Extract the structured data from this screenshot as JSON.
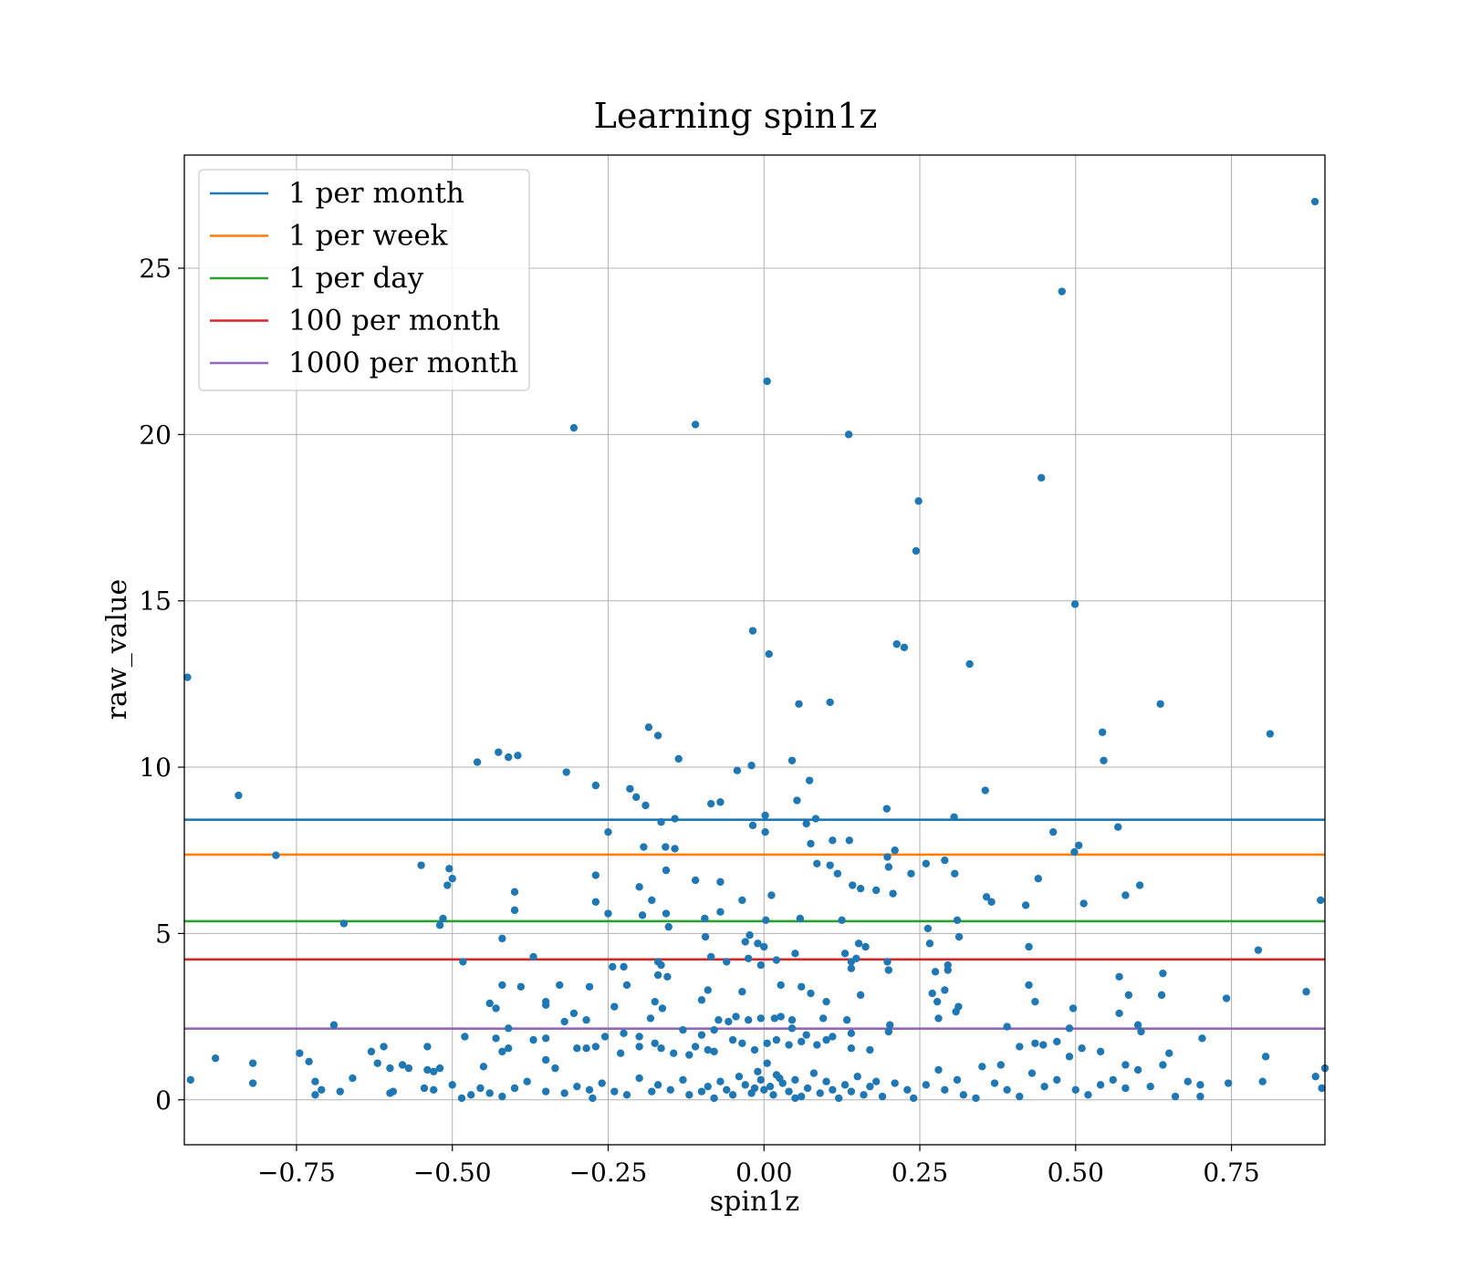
{
  "chart_data": {
    "type": "scatter",
    "title": "Learning spin1z",
    "xlabel": "spin1z",
    "ylabel": "raw_value",
    "xlim": [
      -0.93,
      0.9
    ],
    "ylim": [
      -1.35,
      28.4
    ],
    "xticks": [
      -0.75,
      -0.5,
      -0.25,
      0.0,
      0.25,
      0.5,
      0.75
    ],
    "xtick_labels": [
      "−0.75",
      "−0.50",
      "−0.25",
      "0.00",
      "0.25",
      "0.50",
      "0.75"
    ],
    "yticks": [
      0,
      5,
      10,
      15,
      20,
      25
    ],
    "ytick_labels": [
      "0",
      "5",
      "10",
      "15",
      "20",
      "25"
    ],
    "grid": true,
    "legend_position": "top-left",
    "point_color": "#1f77b4",
    "hlines": [
      {
        "name": "1 per month",
        "y": 8.42,
        "color": "#1f77b4"
      },
      {
        "name": "1 per week",
        "y": 7.37,
        "color": "#ff7f0e"
      },
      {
        "name": "1 per day",
        "y": 5.37,
        "color": "#2ca02c"
      },
      {
        "name": "100 per month",
        "y": 4.22,
        "color": "#d62728"
      },
      {
        "name": "1000 per month",
        "y": 2.14,
        "color": "#9467bd"
      }
    ],
    "points": [
      [
        0.884,
        27.0
      ],
      [
        0.478,
        24.3
      ],
      [
        0.005,
        21.6
      ],
      [
        -0.305,
        20.2
      ],
      [
        -0.11,
        20.3
      ],
      [
        0.136,
        20.0
      ],
      [
        0.445,
        18.7
      ],
      [
        0.248,
        18.0
      ],
      [
        0.244,
        16.5
      ],
      [
        0.499,
        14.9
      ],
      [
        -0.018,
        14.1
      ],
      [
        0.008,
        13.4
      ],
      [
        0.213,
        13.7
      ],
      [
        0.225,
        13.6
      ],
      [
        0.33,
        13.1
      ],
      [
        -0.925,
        12.7
      ],
      [
        0.056,
        11.9
      ],
      [
        0.106,
        11.95
      ],
      [
        0.636,
        11.9
      ],
      [
        0.812,
        11.0
      ],
      [
        0.543,
        11.05
      ],
      [
        -0.185,
        11.2
      ],
      [
        -0.17,
        10.95
      ],
      [
        -0.137,
        10.25
      ],
      [
        -0.46,
        10.15
      ],
      [
        -0.426,
        10.45
      ],
      [
        -0.41,
        10.3
      ],
      [
        -0.395,
        10.35
      ],
      [
        0.545,
        10.2
      ],
      [
        0.045,
        10.2
      ],
      [
        -0.043,
        9.9
      ],
      [
        -0.02,
        10.05
      ],
      [
        -0.317,
        9.85
      ],
      [
        -0.27,
        9.45
      ],
      [
        -0.215,
        9.35
      ],
      [
        -0.205,
        9.1
      ],
      [
        -0.19,
        8.85
      ],
      [
        -0.085,
        8.9
      ],
      [
        -0.07,
        8.95
      ],
      [
        0.053,
        9.0
      ],
      [
        0.073,
        9.6
      ],
      [
        0.197,
        8.75
      ],
      [
        0.355,
        9.3
      ],
      [
        -0.843,
        9.15
      ],
      [
        0.305,
        8.5
      ],
      [
        0.083,
        8.45
      ],
      [
        0.068,
        8.3
      ],
      [
        -0.018,
        8.25
      ],
      [
        0.002,
        8.55
      ],
      [
        0.002,
        8.05
      ],
      [
        -0.143,
        8.45
      ],
      [
        -0.165,
        8.35
      ],
      [
        -0.25,
        8.05
      ],
      [
        0.464,
        8.05
      ],
      [
        0.568,
        8.2
      ],
      [
        0.505,
        7.65
      ],
      [
        0.498,
        7.45
      ],
      [
        0.11,
        7.8
      ],
      [
        0.137,
        7.8
      ],
      [
        0.075,
        7.7
      ],
      [
        -0.158,
        7.6
      ],
      [
        -0.143,
        7.55
      ],
      [
        -0.193,
        7.6
      ],
      [
        0.21,
        7.5
      ],
      [
        0.198,
        7.3
      ],
      [
        0.29,
        7.2
      ],
      [
        0.26,
        7.1
      ],
      [
        -0.783,
        7.35
      ],
      [
        -0.55,
        7.05
      ],
      [
        -0.505,
        6.95
      ],
      [
        -0.5,
        6.65
      ],
      [
        -0.508,
        6.45
      ],
      [
        0.085,
        7.1
      ],
      [
        0.106,
        7.05
      ],
      [
        0.118,
        6.8
      ],
      [
        0.236,
        6.8
      ],
      [
        0.306,
        6.8
      ],
      [
        0.2,
        7.0
      ],
      [
        -0.157,
        6.9
      ],
      [
        -0.27,
        6.75
      ],
      [
        -0.11,
        6.6
      ],
      [
        -0.07,
        6.55
      ],
      [
        0.142,
        6.45
      ],
      [
        0.155,
        6.35
      ],
      [
        0.18,
        6.3
      ],
      [
        0.207,
        6.2
      ],
      [
        -0.2,
        6.4
      ],
      [
        -0.18,
        6.0
      ],
      [
        -0.4,
        6.25
      ],
      [
        0.44,
        6.65
      ],
      [
        0.603,
        6.45
      ],
      [
        0.58,
        6.15
      ],
      [
        0.357,
        6.1
      ],
      [
        0.365,
        5.95
      ],
      [
        0.012,
        6.15
      ],
      [
        -0.035,
        6.0
      ],
      [
        0.42,
        5.85
      ],
      [
        0.513,
        5.9
      ],
      [
        -0.27,
        5.95
      ],
      [
        -0.4,
        5.7
      ],
      [
        -0.25,
        5.6
      ],
      [
        -0.157,
        5.6
      ],
      [
        -0.095,
        5.45
      ],
      [
        0.058,
        5.45
      ],
      [
        0.125,
        5.4
      ],
      [
        0.31,
        5.4
      ],
      [
        -0.515,
        5.45
      ],
      [
        -0.52,
        5.25
      ],
      [
        -0.674,
        5.3
      ],
      [
        -0.195,
        5.55
      ],
      [
        -0.07,
        5.65
      ],
      [
        0.003,
        5.4
      ],
      [
        -0.153,
        5.2
      ],
      [
        0.263,
        5.15
      ],
      [
        -0.023,
        4.95
      ],
      [
        -0.094,
        4.9
      ],
      [
        -0.42,
        4.85
      ],
      [
        0.313,
        4.9
      ],
      [
        0.152,
        4.7
      ],
      [
        0.163,
        4.6
      ],
      [
        0.266,
        4.7
      ],
      [
        0.425,
        4.6
      ],
      [
        0.793,
        4.5
      ],
      [
        -0.01,
        4.7
      ],
      [
        0.0,
        4.6
      ],
      [
        -0.03,
        4.75
      ],
      [
        -0.085,
        4.3
      ],
      [
        -0.37,
        4.3
      ],
      [
        -0.483,
        4.15
      ],
      [
        -0.17,
        4.15
      ],
      [
        -0.165,
        4.05
      ],
      [
        -0.06,
        4.15
      ],
      [
        -0.025,
        4.25
      ],
      [
        0.02,
        4.2
      ],
      [
        0.05,
        4.4
      ],
      [
        0.13,
        4.4
      ],
      [
        0.14,
        4.15
      ],
      [
        0.148,
        4.25
      ],
      [
        0.198,
        4.15
      ],
      [
        0.295,
        4.05
      ],
      [
        0.295,
        3.9
      ],
      [
        0.275,
        3.85
      ],
      [
        0.2,
        3.9
      ],
      [
        -0.005,
        4.05
      ],
      [
        -0.243,
        4.0
      ],
      [
        -0.225,
        4.0
      ],
      [
        -0.17,
        3.75
      ],
      [
        -0.155,
        3.7
      ],
      [
        0.14,
        3.95
      ],
      [
        0.64,
        3.8
      ],
      [
        0.57,
        3.7
      ],
      [
        0.585,
        3.15
      ],
      [
        0.638,
        3.15
      ],
      [
        0.425,
        3.45
      ],
      [
        0.435,
        2.95
      ],
      [
        -0.42,
        3.45
      ],
      [
        -0.39,
        3.4
      ],
      [
        -0.328,
        3.45
      ],
      [
        -0.28,
        3.4
      ],
      [
        -0.35,
        2.95
      ],
      [
        -0.35,
        2.85
      ],
      [
        -0.22,
        3.45
      ],
      [
        -0.1,
        3.0
      ],
      [
        -0.09,
        3.3
      ],
      [
        -0.035,
        3.25
      ],
      [
        0.027,
        3.45
      ],
      [
        0.06,
        3.4
      ],
      [
        0.075,
        3.2
      ],
      [
        0.1,
        2.95
      ],
      [
        0.155,
        3.15
      ],
      [
        0.27,
        3.2
      ],
      [
        0.29,
        3.3
      ],
      [
        0.278,
        2.95
      ],
      [
        0.312,
        2.8
      ],
      [
        0.308,
        2.65
      ],
      [
        0.742,
        3.05
      ],
      [
        0.87,
        3.25
      ],
      [
        -0.163,
        2.75
      ],
      [
        -0.175,
        2.95
      ],
      [
        -0.24,
        2.8
      ],
      [
        -0.44,
        2.9
      ],
      [
        -0.43,
        2.75
      ],
      [
        -0.32,
        2.35
      ],
      [
        -0.305,
        2.6
      ],
      [
        -0.285,
        2.4
      ],
      [
        -0.182,
        2.45
      ],
      [
        -0.073,
        2.4
      ],
      [
        -0.057,
        2.35
      ],
      [
        -0.045,
        2.5
      ],
      [
        -0.025,
        2.4
      ],
      [
        -0.005,
        2.45
      ],
      [
        0.017,
        2.45
      ],
      [
        0.027,
        2.5
      ],
      [
        0.045,
        2.4
      ],
      [
        0.095,
        2.45
      ],
      [
        0.133,
        2.4
      ],
      [
        0.202,
        2.25
      ],
      [
        0.28,
        2.45
      ],
      [
        0.496,
        2.75
      ],
      [
        0.57,
        2.6
      ],
      [
        0.6,
        2.25
      ],
      [
        0.605,
        2.05
      ],
      [
        -0.69,
        2.25
      ],
      [
        -0.41,
        2.15
      ],
      [
        -0.255,
        1.9
      ],
      [
        -0.225,
        2.0
      ],
      [
        -0.2,
        1.9
      ],
      [
        -0.13,
        2.1
      ],
      [
        -0.1,
        1.95
      ],
      [
        -0.08,
        2.1
      ],
      [
        0.045,
        2.15
      ],
      [
        0.068,
        1.95
      ],
      [
        0.11,
        1.9
      ],
      [
        0.14,
        2.0
      ],
      [
        0.2,
        2.05
      ],
      [
        0.39,
        2.2
      ],
      [
        0.49,
        2.15
      ],
      [
        -0.48,
        1.9
      ],
      [
        -0.43,
        1.85
      ],
      [
        -0.37,
        1.8
      ],
      [
        -0.35,
        1.85
      ],
      [
        -0.54,
        1.6
      ],
      [
        -0.61,
        1.6
      ],
      [
        -0.63,
        1.45
      ],
      [
        -0.745,
        1.4
      ],
      [
        -0.73,
        1.15
      ],
      [
        -0.82,
        1.1
      ],
      [
        -0.88,
        1.25
      ],
      [
        -0.62,
        1.1
      ],
      [
        -0.58,
        1.05
      ],
      [
        -0.54,
        0.9
      ],
      [
        -0.53,
        0.85
      ],
      [
        -0.52,
        0.95
      ],
      [
        -0.45,
        1.0
      ],
      [
        -0.42,
        1.45
      ],
      [
        -0.41,
        1.55
      ],
      [
        -0.335,
        0.95
      ],
      [
        -0.3,
        1.55
      ],
      [
        -0.285,
        1.55
      ],
      [
        -0.27,
        1.6
      ],
      [
        -0.23,
        1.4
      ],
      [
        -0.2,
        1.6
      ],
      [
        -0.175,
        1.7
      ],
      [
        -0.165,
        1.55
      ],
      [
        -0.145,
        1.4
      ],
      [
        -0.12,
        1.35
      ],
      [
        -0.11,
        1.6
      ],
      [
        -0.09,
        1.5
      ],
      [
        -0.08,
        1.45
      ],
      [
        -0.05,
        1.8
      ],
      [
        -0.035,
        1.7
      ],
      [
        -0.015,
        1.5
      ],
      [
        0.005,
        1.7
      ],
      [
        0.02,
        1.8
      ],
      [
        0.04,
        1.65
      ],
      [
        0.06,
        1.75
      ],
      [
        0.085,
        1.65
      ],
      [
        0.1,
        1.8
      ],
      [
        0.14,
        1.55
      ],
      [
        0.17,
        1.5
      ],
      [
        0.38,
        1.05
      ],
      [
        0.41,
        1.6
      ],
      [
        0.435,
        1.7
      ],
      [
        0.448,
        1.65
      ],
      [
        0.47,
        1.75
      ],
      [
        0.49,
        1.3
      ],
      [
        0.51,
        1.55
      ],
      [
        0.54,
        1.45
      ],
      [
        0.58,
        1.05
      ],
      [
        0.64,
        1.05
      ],
      [
        0.65,
        1.4
      ],
      [
        0.703,
        1.85
      ],
      [
        0.805,
        1.3
      ],
      [
        0.893,
        6.0
      ],
      [
        0.895,
        0.35
      ],
      [
        0.9,
        0.95
      ],
      [
        -0.92,
        0.6
      ],
      [
        -0.82,
        0.5
      ],
      [
        -0.72,
        0.55
      ],
      [
        -0.71,
        0.3
      ],
      [
        -0.72,
        0.15
      ],
      [
        -0.68,
        0.25
      ],
      [
        -0.66,
        0.65
      ],
      [
        -0.6,
        0.2
      ],
      [
        -0.595,
        0.25
      ],
      [
        -0.545,
        0.35
      ],
      [
        -0.53,
        0.3
      ],
      [
        -0.5,
        0.45
      ],
      [
        -0.485,
        0.05
      ],
      [
        -0.47,
        0.15
      ],
      [
        -0.455,
        0.35
      ],
      [
        -0.44,
        0.2
      ],
      [
        -0.42,
        0.1
      ],
      [
        -0.4,
        0.35
      ],
      [
        -0.38,
        0.55
      ],
      [
        -0.35,
        0.25
      ],
      [
        -0.32,
        0.2
      ],
      [
        -0.3,
        0.4
      ],
      [
        -0.28,
        0.3
      ],
      [
        -0.26,
        0.5
      ],
      [
        -0.24,
        0.25
      ],
      [
        -0.22,
        0.15
      ],
      [
        -0.2,
        0.65
      ],
      [
        -0.18,
        0.25
      ],
      [
        -0.17,
        0.45
      ],
      [
        -0.15,
        0.3
      ],
      [
        -0.13,
        0.6
      ],
      [
        -0.12,
        0.15
      ],
      [
        -0.1,
        0.25
      ],
      [
        -0.09,
        0.4
      ],
      [
        -0.08,
        0.05
      ],
      [
        -0.07,
        0.55
      ],
      [
        -0.06,
        0.3
      ],
      [
        -0.05,
        0.15
      ],
      [
        -0.04,
        0.7
      ],
      [
        -0.03,
        0.45
      ],
      [
        -0.02,
        0.2
      ],
      [
        -0.01,
        0.85
      ],
      [
        -0.005,
        0.6
      ],
      [
        0.0,
        0.3
      ],
      [
        0.005,
        1.1
      ],
      [
        0.01,
        0.4
      ],
      [
        0.015,
        0.15
      ],
      [
        0.02,
        0.75
      ],
      [
        0.03,
        0.5
      ],
      [
        0.04,
        0.25
      ],
      [
        0.05,
        0.6
      ],
      [
        0.06,
        0.1
      ],
      [
        0.07,
        0.35
      ],
      [
        0.08,
        0.8
      ],
      [
        0.09,
        0.2
      ],
      [
        0.1,
        0.55
      ],
      [
        0.11,
        0.3
      ],
      [
        0.12,
        0.05
      ],
      [
        0.13,
        0.45
      ],
      [
        0.14,
        0.25
      ],
      [
        0.15,
        0.7
      ],
      [
        0.16,
        0.15
      ],
      [
        0.17,
        0.4
      ],
      [
        0.18,
        0.55
      ],
      [
        0.19,
        0.1
      ],
      [
        0.21,
        0.5
      ],
      [
        0.23,
        0.3
      ],
      [
        0.24,
        0.05
      ],
      [
        0.26,
        0.45
      ],
      [
        0.28,
        0.9
      ],
      [
        0.29,
        0.3
      ],
      [
        0.31,
        0.6
      ],
      [
        0.32,
        0.15
      ],
      [
        0.34,
        0.05
      ],
      [
        0.35,
        1.0
      ],
      [
        0.37,
        0.5
      ],
      [
        0.39,
        0.3
      ],
      [
        0.41,
        0.1
      ],
      [
        0.43,
        0.8
      ],
      [
        0.45,
        0.4
      ],
      [
        0.47,
        0.6
      ],
      [
        0.5,
        0.3
      ],
      [
        0.52,
        0.15
      ],
      [
        0.54,
        0.45
      ],
      [
        0.56,
        0.6
      ],
      [
        0.58,
        0.35
      ],
      [
        0.6,
        0.9
      ],
      [
        0.62,
        0.4
      ],
      [
        0.66,
        0.1
      ],
      [
        0.68,
        0.55
      ],
      [
        0.7,
        0.45
      ],
      [
        0.7,
        0.1
      ],
      [
        0.745,
        0.5
      ],
      [
        0.8,
        0.55
      ],
      [
        0.885,
        0.7
      ],
      [
        -0.57,
        0.95
      ],
      [
        -0.275,
        0.05
      ],
      [
        -0.35,
        1.2
      ],
      [
        -0.6,
        0.95
      ],
      [
        0.05,
        0.05
      ],
      [
        0.025,
        0.65
      ],
      [
        -0.015,
        0.35
      ]
    ]
  }
}
